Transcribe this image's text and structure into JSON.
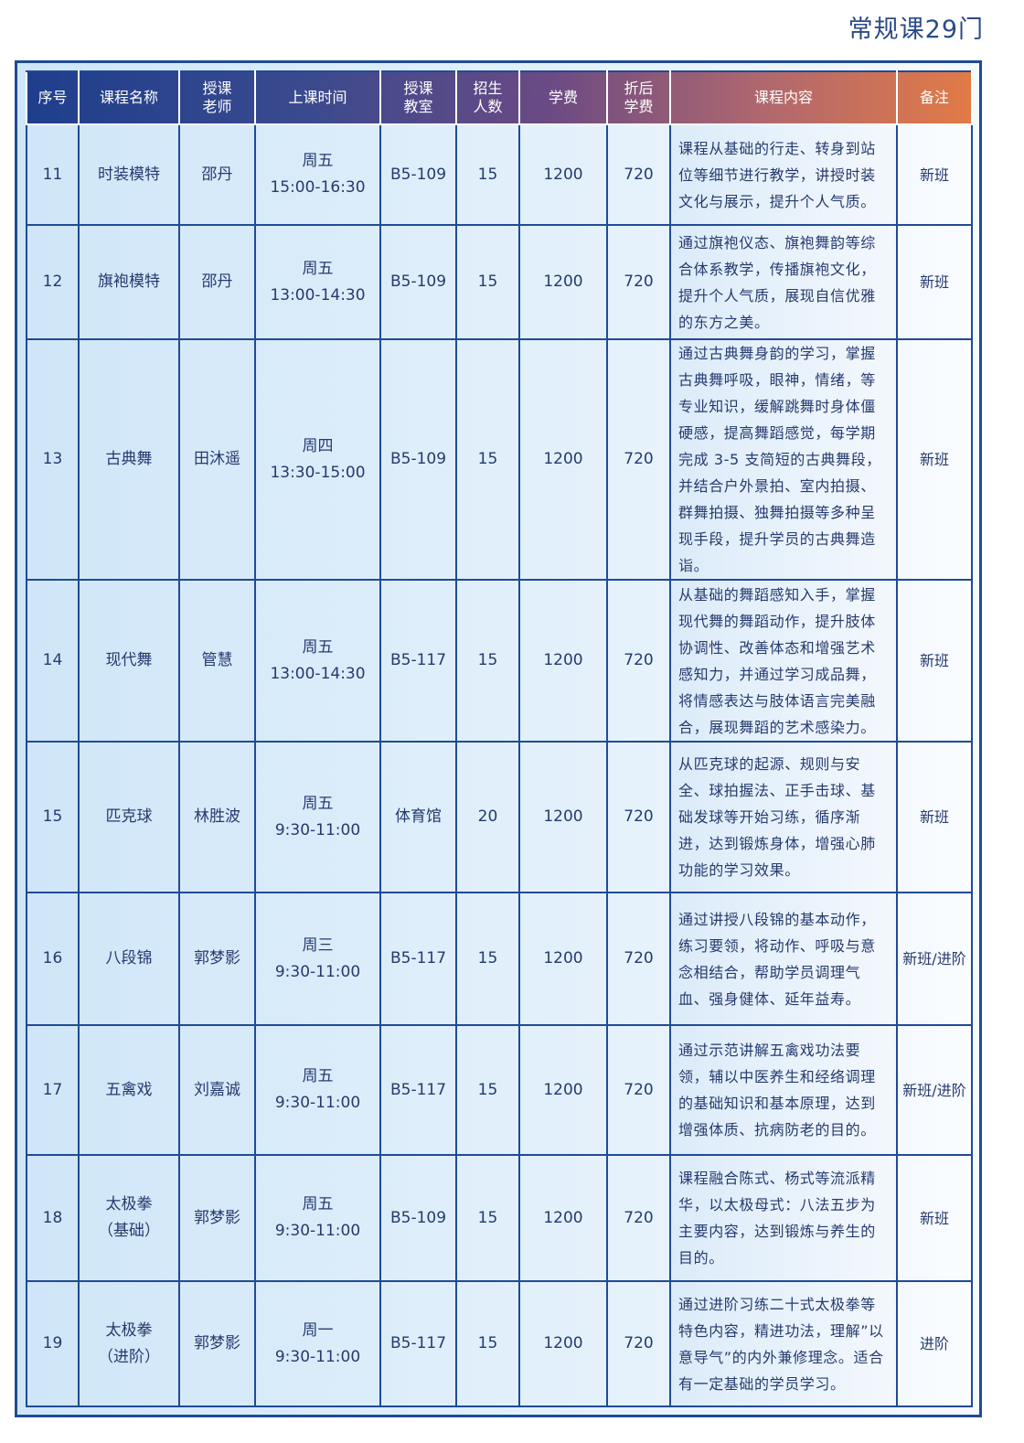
{
  "title": "常规课29门",
  "headers": [
    "序号",
    "课程名称",
    "授课\n老师",
    "上课时间",
    "授课\n教室",
    "招生\n人数",
    "学费",
    "折后\n学费",
    "课程内容",
    "备注"
  ],
  "rows": [
    {
      "no": "11",
      "name": "时装模特",
      "teacher": "邵丹",
      "day": "周五",
      "time": "15:00-16:30",
      "room": "B5-109",
      "quota": "15",
      "fee": "1200",
      "discount": "720",
      "content": "课程从基础的行走、转身到站位等细节进行教学，讲授时装文化与展示，提升个人气质。",
      "note": "新班"
    },
    {
      "no": "12",
      "name": "旗袍模特",
      "teacher": "邵丹",
      "day": "周五",
      "time": "13:00-14:30",
      "room": "B5-109",
      "quota": "15",
      "fee": "1200",
      "discount": "720",
      "content": "通过旗袍仪态、旗袍舞韵等综合体系教学，传播旗袍文化，提升个人气质，展现自信优雅的东方之美。",
      "note": "新班"
    },
    {
      "no": "13",
      "name": "古典舞",
      "teacher": "田沐遥",
      "day": "周四",
      "time": "13:30-15:00",
      "room": "B5-109",
      "quota": "15",
      "fee": "1200",
      "discount": "720",
      "content": "通过古典舞身韵的学习，掌握古典舞呼吸，眼神，情绪，等专业知识，缓解跳舞时身体僵硬感，提高舞蹈感觉，每学期完成 3-5 支简短的古典舞段，并结合户外景拍、室内拍摄、群舞拍摄、独舞拍摄等多种呈现手段，提升学员的古典舞造诣。",
      "note": "新班"
    },
    {
      "no": "14",
      "name": "现代舞",
      "teacher": "管慧",
      "day": "周五",
      "time": "13:00-14:30",
      "room": "B5-117",
      "quota": "15",
      "fee": "1200",
      "discount": "720",
      "content": "从基础的舞蹈感知入手，掌握现代舞的舞蹈动作，提升肢体协调性、改善体态和增强艺术感知力，并通过学习成品舞，将情感表达与肢体语言完美融合，展现舞蹈的艺术感染力。",
      "note": "新班"
    },
    {
      "no": "15",
      "name": "匹克球",
      "teacher": "林胜波",
      "day": "周五",
      "time": "9:30-11:00",
      "room": "体育馆",
      "quota": "20",
      "fee": "1200",
      "discount": "720",
      "content": "从匹克球的起源、规则与安全、球拍握法、正手击球、基础发球等开始习练，循序渐进，达到锻炼身体，增强心肺功能的学习效果。",
      "note": "新班"
    },
    {
      "no": "16",
      "name": "八段锦",
      "teacher": "郭梦影",
      "day": "周三",
      "time": "9:30-11:00",
      "room": "B5-117",
      "quota": "15",
      "fee": "1200",
      "discount": "720",
      "content": "通过讲授八段锦的基本动作，练习要领，将动作、呼吸与意念相结合，帮助学员调理气血、强身健体、延年益寿。",
      "note": "新班/进阶"
    },
    {
      "no": "17",
      "name": "五禽戏",
      "teacher": "刘嘉诚",
      "day": "周五",
      "time": "9:30-11:00",
      "room": "B5-117",
      "quota": "15",
      "fee": "1200",
      "discount": "720",
      "content": "通过示范讲解五禽戏功法要领，辅以中医养生和经络调理的基础知识和基本原理，达到增强体质、抗病防老的目的。",
      "note": "新班/进阶"
    },
    {
      "no": "18",
      "name": "太极拳\n（基础）",
      "teacher": "郭梦影",
      "day": "周五",
      "time": "9:30-11:00",
      "room": "B5-109",
      "quota": "15",
      "fee": "1200",
      "discount": "720",
      "content": "课程融合陈式、杨式等流派精华，以太极母式：八法五步为主要内容，达到锻炼与养生的目的。",
      "note": "新班"
    },
    {
      "no": "19",
      "name": "太极拳\n（进阶）",
      "teacher": "郭梦影",
      "day": "周一",
      "time": "9:30-11:00",
      "room": "B5-117",
      "quota": "15",
      "fee": "1200",
      "discount": "720",
      "content": "通过进阶习练二十式太极拳等特色内容，精进功法，理解”以意导气”的内外兼修理念。适合有一定基础的学员学习。",
      "note": "进阶"
    }
  ]
}
